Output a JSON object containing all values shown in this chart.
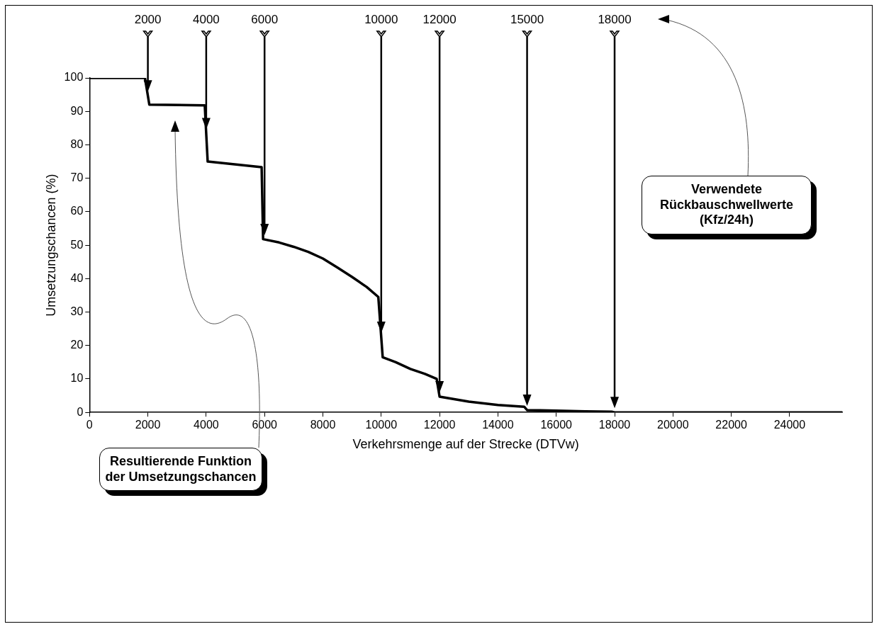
{
  "chart_data": {
    "type": "line",
    "xlabel": "Verkehrsmenge auf der Strecke (DTVw)",
    "ylabel": "Umsetzungschancen (%)",
    "x": [
      0,
      1900,
      2050,
      3950,
      4050,
      5900,
      5950,
      6500,
      7000,
      7500,
      8000,
      8500,
      9000,
      9500,
      9900,
      10050,
      10500,
      11000,
      11500,
      11900,
      12000,
      13000,
      14000,
      14900,
      15000,
      16000,
      17000,
      17900,
      18000,
      25800
    ],
    "series": [
      {
        "color": "#000000",
        "values": [
          100,
          100,
          92,
          91.8,
          75,
          73.3,
          51.8,
          50.8,
          49.5,
          48,
          46,
          43.3,
          40.5,
          37.5,
          34.5,
          16.5,
          15,
          13,
          11.5,
          10,
          4.7,
          3.2,
          2.2,
          1.7,
          0.7,
          0.5,
          0.3,
          0.2,
          0,
          0
        ]
      }
    ],
    "xlim": [
      0,
      25800
    ],
    "xticks": [
      0,
      2000,
      4000,
      6000,
      8000,
      10000,
      12000,
      14000,
      16000,
      18000,
      20000,
      22000,
      24000
    ],
    "ylim": [
      0,
      100
    ],
    "yticks": [
      0,
      10,
      20,
      30,
      40,
      50,
      60,
      70,
      80,
      90,
      100
    ],
    "legend": false,
    "marker": "none",
    "line_style": "solid",
    "ref_lines": [
      {
        "axis": "x",
        "value": 2000,
        "label": "2000"
      },
      {
        "axis": "x",
        "value": 4000,
        "label": "4000"
      },
      {
        "axis": "x",
        "value": 6000,
        "label": "6000"
      },
      {
        "axis": "x",
        "value": 10000,
        "label": "10000"
      },
      {
        "axis": "x",
        "value": 12000,
        "label": "12000"
      },
      {
        "axis": "x",
        "value": 15000,
        "label": "15000"
      },
      {
        "axis": "x",
        "value": 18000,
        "label": "18000"
      }
    ],
    "annotations": [
      "Resultierende Funktion der Umsetzungschancen",
      "Verwendete Rückbauschwellwerte (Kfz/24h)"
    ]
  }
}
